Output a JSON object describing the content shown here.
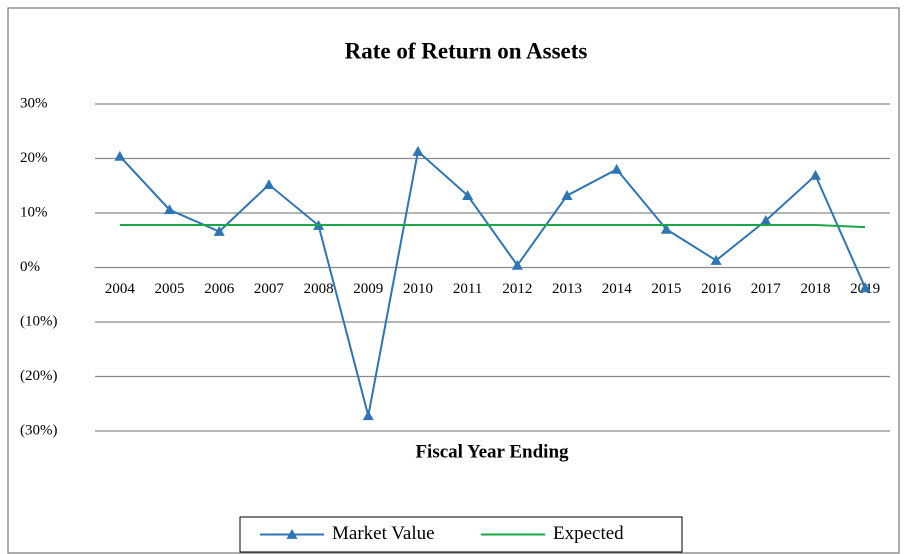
{
  "chart_data": {
    "type": "line",
    "title": "Rate of Return on Assets",
    "x_label": "Fiscal Year Ending",
    "categories": [
      "2004",
      "2005",
      "2006",
      "2007",
      "2008",
      "2009",
      "2010",
      "2011",
      "2012",
      "2013",
      "2014",
      "2015",
      "2016",
      "2017",
      "2018",
      "2019"
    ],
    "series": [
      {
        "name": "Market Value",
        "color": "#2e75b6",
        "marker": "triangle",
        "values": [
          20.4,
          10.6,
          6.6,
          15.2,
          7.7,
          -27.2,
          21.3,
          13.2,
          0.4,
          13.2,
          18.0,
          7.0,
          1.3,
          8.6,
          16.9,
          -3.7
        ]
      },
      {
        "name": "Expected",
        "color": "#1aa64a",
        "values": [
          7.8,
          7.8,
          7.8,
          7.8,
          7.8,
          7.8,
          7.8,
          7.8,
          7.8,
          7.8,
          7.8,
          7.8,
          7.8,
          7.8,
          7.8,
          7.4
        ]
      }
    ],
    "ylim": [
      -30,
      30
    ],
    "yticks": [
      {
        "value": -30,
        "label": "(30%)"
      },
      {
        "value": -20,
        "label": "(20%)"
      },
      {
        "value": -10,
        "label": "(10%)"
      },
      {
        "value": 0,
        "label": "0%"
      },
      {
        "value": 10,
        "label": "10%"
      },
      {
        "value": 20,
        "label": "20%"
      },
      {
        "value": 30,
        "label": "30%"
      }
    ],
    "grid": true,
    "legend": "bottom"
  }
}
